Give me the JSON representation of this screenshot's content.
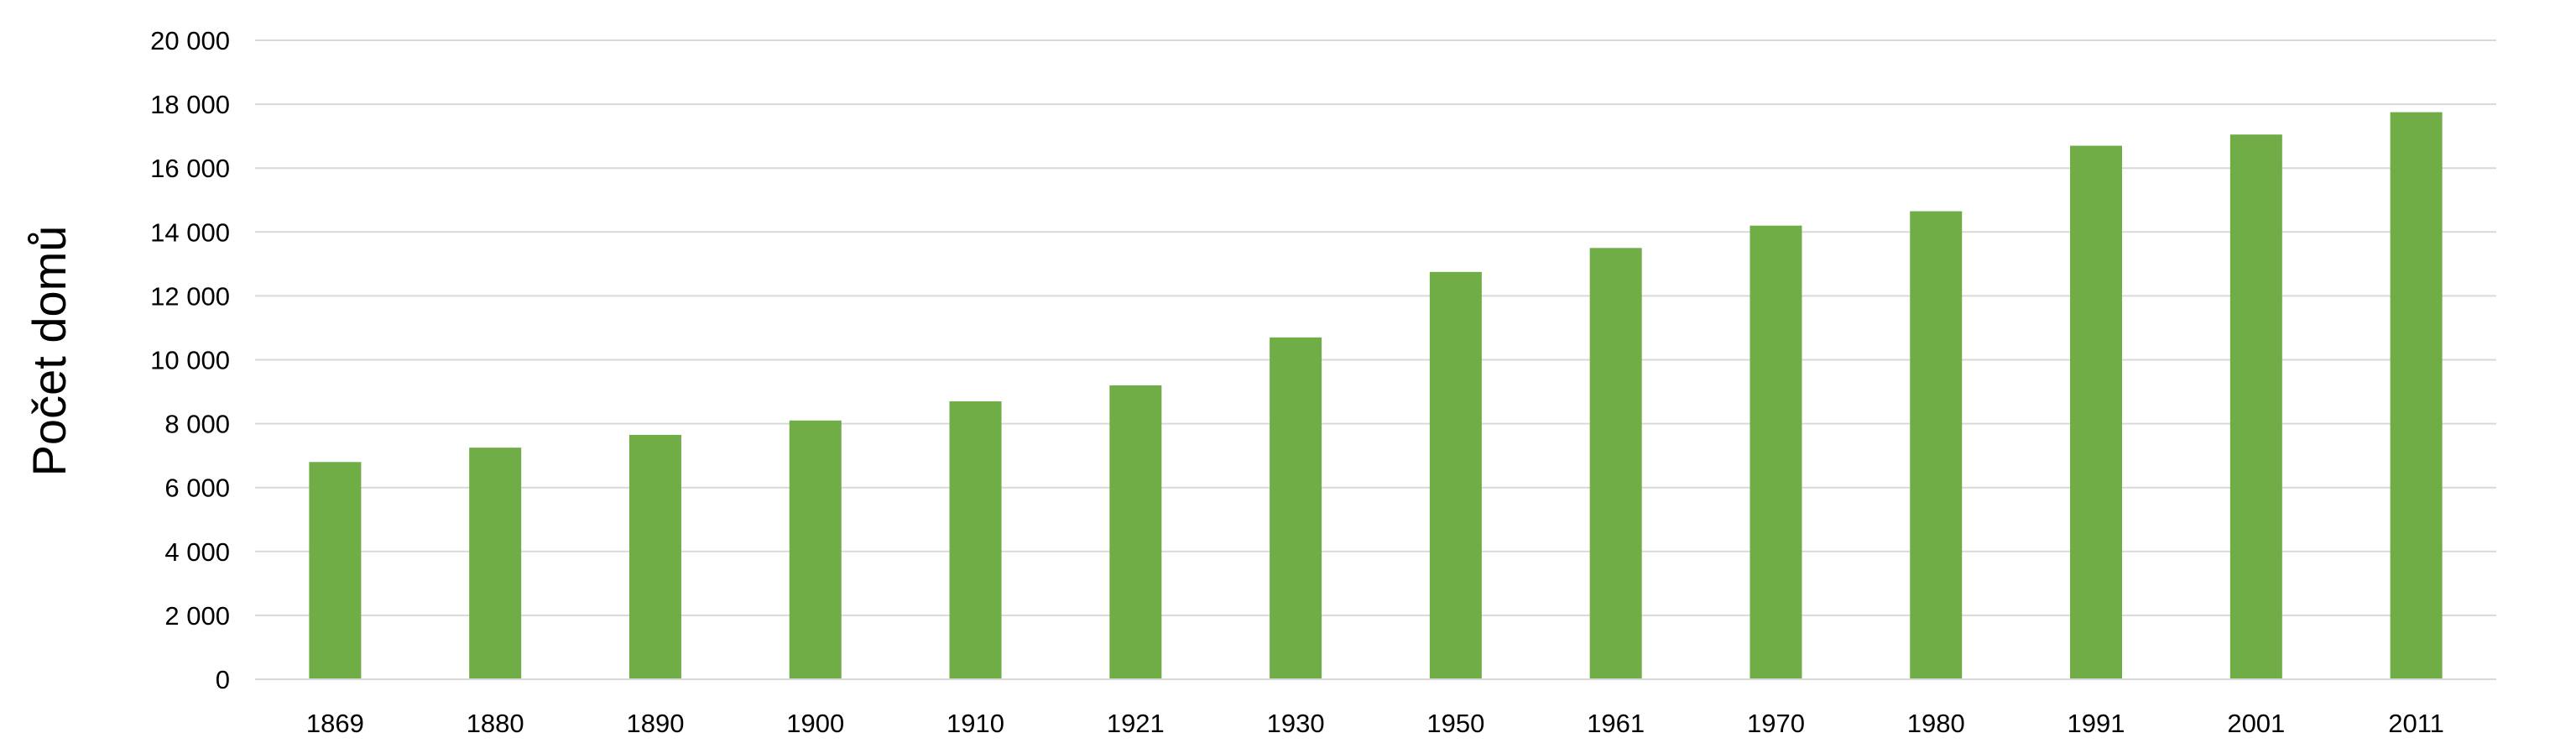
{
  "chart_data": {
    "type": "bar",
    "title": "",
    "xlabel": "",
    "ylabel": "Počet domů",
    "ylim": [
      0,
      20000
    ],
    "ytick_step": 2000,
    "ytick_labels": [
      "0",
      "2 000",
      "4 000",
      "6 000",
      "8 000",
      "10 000",
      "12 000",
      "14 000",
      "16 000",
      "18 000",
      "20 000"
    ],
    "grid": true,
    "legend": "none",
    "bar_color": "#70ad47",
    "grid_color": "#d9d9d9",
    "axis_color": "#d9d9d9",
    "categories": [
      "1869",
      "1880",
      "1890",
      "1900",
      "1910",
      "1921",
      "1930",
      "1950",
      "1961",
      "1970",
      "1980",
      "1991",
      "2001",
      "2011"
    ],
    "values": [
      6800,
      7250,
      7650,
      8100,
      8700,
      9200,
      10700,
      12750,
      13500,
      14200,
      14650,
      16700,
      17050,
      17750
    ]
  }
}
